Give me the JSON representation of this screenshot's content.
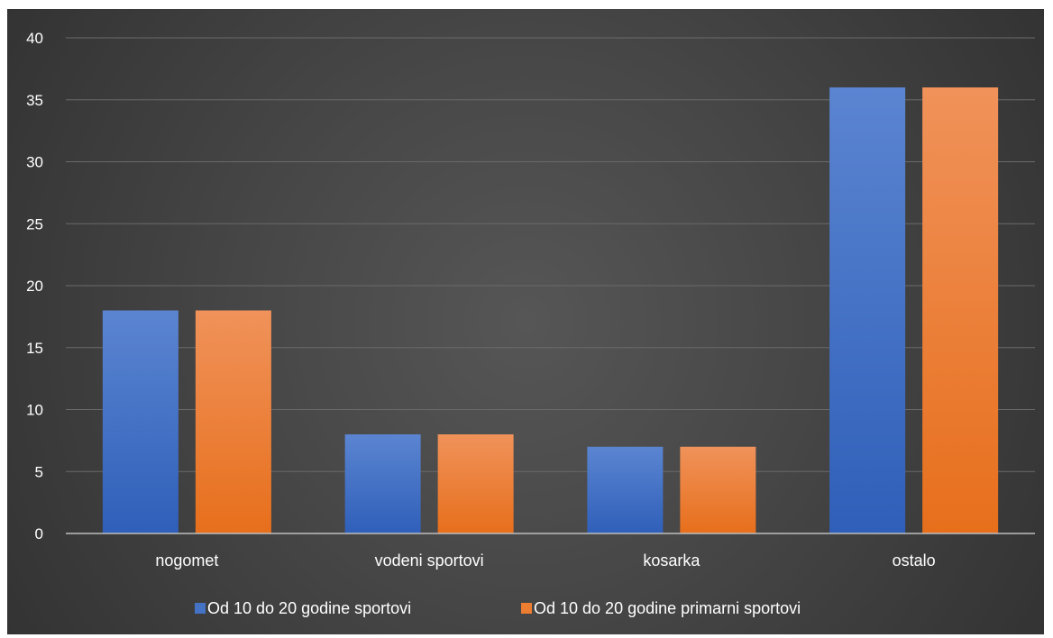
{
  "chart_data": {
    "type": "bar",
    "categories": [
      "nogomet",
      "vodeni sportovi",
      "kosarka",
      "ostalo"
    ],
    "series": [
      {
        "name": "Od 10 do 20 godine sportovi",
        "values": [
          18,
          8,
          7,
          36
        ],
        "color": "#4472C4"
      },
      {
        "name": "Od 10 do 20 godine primarni sportovi",
        "values": [
          18,
          8,
          7,
          36
        ],
        "color": "#ED7D31"
      }
    ],
    "ylim": [
      0,
      40
    ],
    "yticks": [
      0,
      5,
      10,
      15,
      20,
      25,
      30,
      35,
      40
    ],
    "grid": true,
    "legend": "bottom"
  }
}
